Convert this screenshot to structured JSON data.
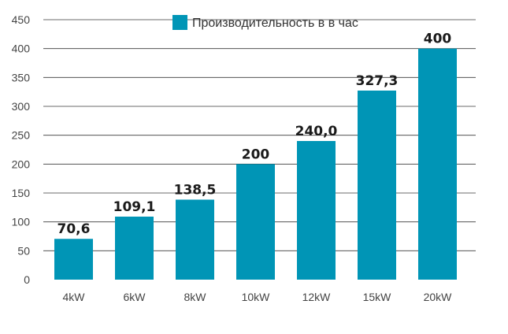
{
  "chart_data": {
    "type": "bar",
    "categories": [
      "4kW",
      "6kW",
      "8kW",
      "10kW",
      "12kW",
      "15kW",
      "20kW"
    ],
    "series": [
      {
        "name": "Производительность в  в час",
        "values": [
          70.6,
          109.1,
          138.5,
          200,
          240.0,
          327.3,
          400
        ],
        "value_labels": [
          "70,6",
          "109,1",
          "138,5",
          "200",
          "240,0",
          "327,3",
          "400"
        ]
      }
    ],
    "ylim": [
      0,
      450
    ],
    "yticks": [
      0,
      50,
      100,
      150,
      200,
      250,
      300,
      350,
      400,
      450
    ],
    "grid": true,
    "legend_position": "top-center",
    "bar_color": "#0095b6",
    "grid_color": "#3a3a3a",
    "title": "",
    "xlabel": "",
    "ylabel": ""
  }
}
